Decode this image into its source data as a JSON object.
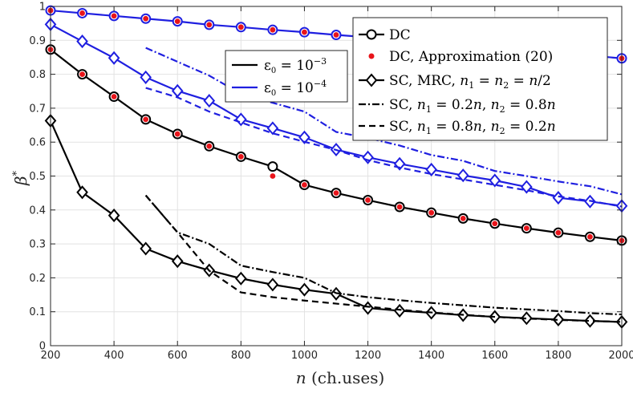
{
  "chart_data": {
    "type": "line",
    "title": "",
    "xlabel": "n (ch.uses)",
    "ylabel": "β*",
    "xlim": [
      200,
      2000
    ],
    "ylim": [
      0,
      1
    ],
    "grid": true,
    "xticks": [
      200,
      400,
      600,
      800,
      1000,
      1200,
      1400,
      1600,
      1800,
      2000
    ],
    "yticks": [
      0,
      0.1,
      0.2,
      0.3,
      0.4,
      0.5,
      0.6,
      0.7,
      0.8,
      0.9,
      1
    ],
    "x": [
      200,
      300,
      400,
      500,
      600,
      700,
      800,
      900,
      1000,
      1100,
      1200,
      1300,
      1400,
      1500,
      1600,
      1700,
      1800,
      1900,
      2000
    ],
    "colors": {
      "eps_1e3": "#000000",
      "eps_1e4": "#1f1fe0",
      "approx": "#e8141a"
    },
    "legend": {
      "placement": "top-right",
      "entries": [
        {
          "label": "DC",
          "marker": "circle",
          "line": "solid"
        },
        {
          "label": "DC, Approximation (20)",
          "marker": "dot",
          "line": "none"
        },
        {
          "label": "SC, MRC, n1 = n2 = n/2",
          "marker": "diamond",
          "line": "solid"
        },
        {
          "label": "SC, n1 = 0.2n, n2 = 0.8n",
          "marker": "none",
          "line": "dashdot"
        },
        {
          "label": "SC, n1 = 0.8n, n2 = 0.2n",
          "marker": "none",
          "line": "dashed"
        }
      ]
    },
    "epsilon_legend": {
      "placement": "upper-middle",
      "entries": [
        {
          "label": "ε0 = 10^-3",
          "color": "#000000"
        },
        {
          "label": "ε0 = 10^-4",
          "color": "#1f1fe0"
        }
      ]
    },
    "series": [
      {
        "name": "DC, ε0=1e-4",
        "group": "eps_1e4",
        "style": "solid",
        "marker": "circle",
        "x": [
          200,
          300,
          400,
          500,
          600,
          700,
          800,
          900,
          1000,
          1100,
          1200,
          1300,
          1400,
          1500,
          1600,
          1700,
          1800,
          1900,
          2000
        ],
        "values": [
          0.988,
          0.98,
          0.972,
          0.964,
          0.956,
          0.946,
          0.939,
          0.931,
          0.924,
          0.916,
          0.909,
          0.901,
          0.893,
          0.885,
          0.878,
          0.87,
          0.862,
          0.855,
          0.847
        ]
      },
      {
        "name": "DC, Approximation, ε0=1e-4",
        "group": "approx",
        "style": "none",
        "marker": "dot",
        "x": [
          200,
          300,
          400,
          500,
          600,
          700,
          800,
          900,
          1000,
          1100,
          1200,
          1300,
          1400,
          1500,
          1600,
          1700,
          1800,
          1900,
          2000
        ],
        "values": [
          0.988,
          0.98,
          0.972,
          0.964,
          0.956,
          0.946,
          0.939,
          0.931,
          0.924,
          0.916,
          0.909,
          0.901,
          0.893,
          0.885,
          0.878,
          0.87,
          0.862,
          0.855,
          0.847
        ]
      },
      {
        "name": "SC, MRC, ε0=1e-4",
        "group": "eps_1e4",
        "style": "solid",
        "marker": "diamond",
        "x": [
          200,
          300,
          400,
          500,
          600,
          700,
          800,
          900,
          1000,
          1100,
          1200,
          1300,
          1400,
          1500,
          1600,
          1700,
          1800,
          1900,
          2000
        ],
        "values": [
          0.947,
          0.897,
          0.848,
          0.791,
          0.751,
          0.722,
          0.667,
          0.641,
          0.614,
          0.578,
          0.555,
          0.536,
          0.519,
          0.502,
          0.487,
          0.468,
          0.436,
          0.425,
          0.412
        ]
      },
      {
        "name": "SC, n1=0.2n, ε0=1e-4",
        "group": "eps_1e4",
        "style": "dashdot",
        "marker": "none",
        "x": [
          500,
          600,
          700,
          800,
          900,
          1000,
          1100,
          1200,
          1300,
          1400,
          1500,
          1600,
          1700,
          1800,
          1900,
          2000
        ],
        "values": [
          0.878,
          0.837,
          0.796,
          0.742,
          0.716,
          0.69,
          0.63,
          0.612,
          0.59,
          0.562,
          0.545,
          0.515,
          0.5,
          0.484,
          0.47,
          0.446
        ]
      },
      {
        "name": "SC, n1=0.8n, ε0=1e-4",
        "group": "eps_1e4",
        "style": "dashed",
        "marker": "none",
        "x": [
          500,
          600,
          700,
          800,
          900,
          1000,
          1100,
          1200,
          1300,
          1400,
          1500,
          1600,
          1700,
          1800,
          1900,
          2000
        ],
        "values": [
          0.76,
          0.732,
          0.69,
          0.658,
          0.626,
          0.601,
          0.577,
          0.547,
          0.525,
          0.506,
          0.49,
          0.474,
          0.458,
          0.44,
          0.427,
          0.41
        ]
      },
      {
        "name": "DC, ε0=1e-3",
        "group": "eps_1e3",
        "style": "solid",
        "marker": "circle",
        "x": [
          200,
          300,
          400,
          500,
          600,
          700,
          800,
          900,
          1000,
          1100,
          1200,
          1300,
          1400,
          1500,
          1600,
          1700,
          1800,
          1900,
          2000
        ],
        "values": [
          0.873,
          0.8,
          0.734,
          0.667,
          0.624,
          0.588,
          0.557,
          0.528,
          0.474,
          0.45,
          0.429,
          0.409,
          0.392,
          0.375,
          0.36,
          0.346,
          0.333,
          0.321,
          0.31
        ]
      },
      {
        "name": "DC, Approximation, ε0=1e-3",
        "group": "approx",
        "style": "none",
        "marker": "dot",
        "x": [
          200,
          300,
          400,
          500,
          600,
          700,
          800,
          900,
          1000,
          1100,
          1200,
          1300,
          1400,
          1500,
          1600,
          1700,
          1800,
          1900,
          2000
        ],
        "values": [
          0.873,
          0.8,
          0.734,
          0.667,
          0.624,
          0.588,
          0.557,
          0.5,
          0.474,
          0.45,
          0.429,
          0.409,
          0.392,
          0.375,
          0.36,
          0.346,
          0.333,
          0.321,
          0.31
        ]
      },
      {
        "name": "SC, MRC, ε0=1e-3",
        "group": "eps_1e3",
        "style": "solid",
        "marker": "diamond",
        "x": [
          200,
          300,
          400,
          500,
          600,
          700,
          800,
          900,
          1000,
          1100,
          1200,
          1300,
          1400,
          1500,
          1600,
          1700,
          1800,
          1900,
          2000
        ],
        "values": [
          0.663,
          0.452,
          0.384,
          0.286,
          0.249,
          0.222,
          0.198,
          0.18,
          0.165,
          0.153,
          0.111,
          0.103,
          0.097,
          0.09,
          0.085,
          0.081,
          0.077,
          0.073,
          0.07
        ]
      },
      {
        "name": "SC, n1=0.2n, ε0=1e-3",
        "group": "eps_1e3",
        "style": "dashdot",
        "marker": "none",
        "x": [
          500,
          600,
          700,
          800,
          900,
          1000,
          1100,
          1200,
          1300,
          1400,
          1500,
          1600,
          1700,
          1800,
          1900,
          2000
        ],
        "values": [
          0.443,
          0.334,
          0.3,
          0.236,
          0.217,
          0.2,
          0.155,
          0.143,
          0.134,
          0.126,
          0.119,
          0.112,
          0.107,
          0.102,
          0.096,
          0.092
        ]
      },
      {
        "name": "SC, n1=0.8n, ε0=1e-3",
        "group": "eps_1e3",
        "style": "dashed",
        "marker": "none",
        "x": [
          500,
          600,
          700,
          800,
          900,
          1000,
          1100,
          1200,
          1300,
          1400,
          1500,
          1600,
          1700,
          1800,
          1900,
          2000
        ],
        "values": [
          0.443,
          0.334,
          0.221,
          0.157,
          0.143,
          0.133,
          0.124,
          0.115,
          0.106,
          0.098,
          0.091,
          0.085,
          0.08,
          0.076,
          0.073,
          0.07
        ]
      }
    ]
  }
}
